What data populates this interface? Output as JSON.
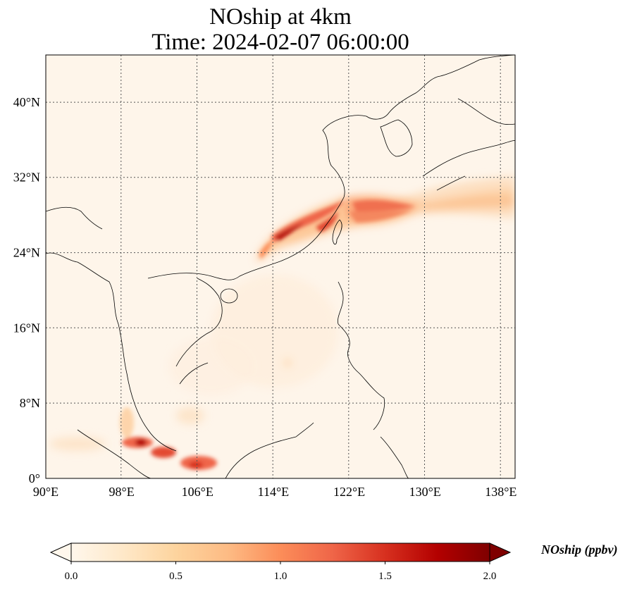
{
  "title": {
    "line1": "NOship at 4km",
    "line2": "Time: 2024-02-07 06:00:00"
  },
  "map": {
    "projection": "PlateCarree",
    "lon_range": [
      90,
      139.5
    ],
    "lat_range": [
      0,
      45
    ],
    "gridlines": "dotted",
    "x_ticks": [
      {
        "value": 90,
        "label": "90°E"
      },
      {
        "value": 98,
        "label": "98°E"
      },
      {
        "value": 106,
        "label": "106°E"
      },
      {
        "value": 114,
        "label": "114°E"
      },
      {
        "value": 122,
        "label": "122°E"
      },
      {
        "value": 130,
        "label": "130°E"
      },
      {
        "value": 138,
        "label": "138°E"
      }
    ],
    "y_ticks": [
      {
        "value": 0,
        "label": "0°"
      },
      {
        "value": 8,
        "label": "8°N"
      },
      {
        "value": 16,
        "label": "16°N"
      },
      {
        "value": 24,
        "label": "24°N"
      },
      {
        "value": 32,
        "label": "32°N"
      },
      {
        "value": 40,
        "label": "40°N"
      }
    ]
  },
  "chart_data": {
    "type": "heatmap",
    "variable": "NOship",
    "level": "4km",
    "units": "ppbv",
    "colormap": "OrRd",
    "vmin": 0.0,
    "vmax": 2.0,
    "features": [
      {
        "name": "east-china-sea-plume",
        "region": "East China Sea, along coast from ~116°E,24°N to ~130°E,29°N",
        "peak_value": 2.0
      },
      {
        "name": "pacific-plume",
        "region": "Extends east past 138°E near 29–31°N",
        "peak_value": 0.7
      },
      {
        "name": "strait-of-malacca",
        "region": "~99–107°E, 1–4°N",
        "peak_value": 1.9
      },
      {
        "name": "south-china-sea-background",
        "region": "Broad low values over South China Sea",
        "peak_value": 0.2
      }
    ]
  },
  "colorbar": {
    "label": "NOship (ppbv)",
    "ticks": [
      {
        "value": 0.0,
        "label": "0.0"
      },
      {
        "value": 0.5,
        "label": "0.5"
      },
      {
        "value": 1.0,
        "label": "1.0"
      },
      {
        "value": 1.5,
        "label": "1.5"
      },
      {
        "value": 2.0,
        "label": "2.0"
      }
    ],
    "colors": [
      "#fff7ec",
      "#fee8c8",
      "#fdd49e",
      "#fdbb84",
      "#fc8d59",
      "#ef6548",
      "#d7301f",
      "#b30000",
      "#7f0000"
    ]
  }
}
